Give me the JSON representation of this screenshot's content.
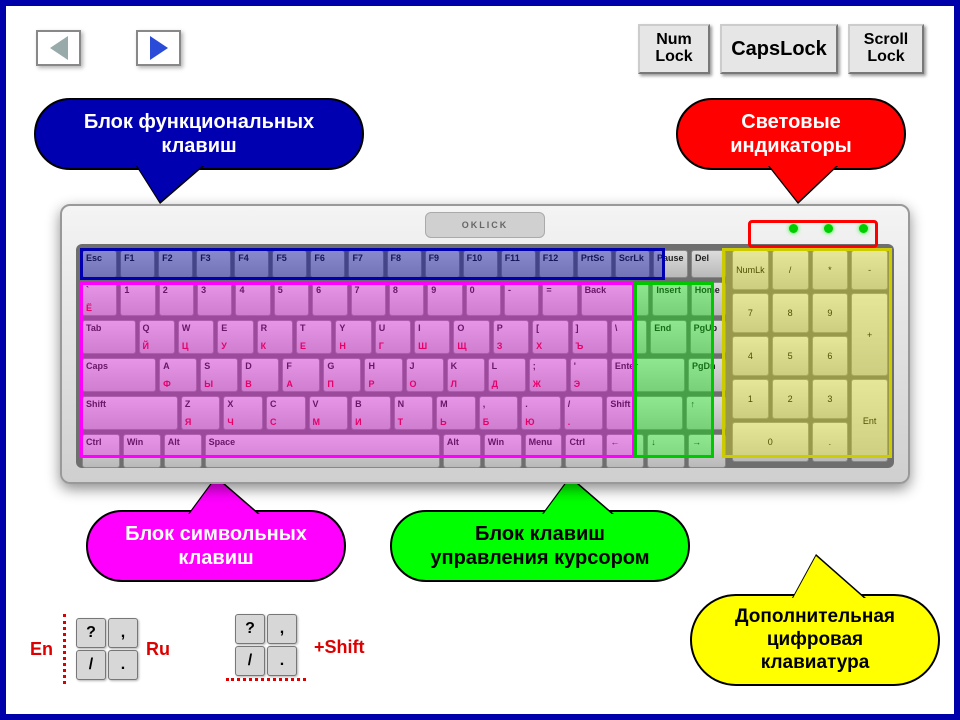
{
  "nav": {
    "back_icon": "triangle-left",
    "forward_icon": "triangle-right"
  },
  "locks": {
    "num": "Num\nLock",
    "caps": "CapsLock",
    "scroll": "Scroll\nLock"
  },
  "callouts": {
    "functional": {
      "text": "Блок функциональных клавиш",
      "bg": "#0000b0",
      "fg": "#ffffff"
    },
    "indicators": {
      "text": "Световые индикаторы",
      "bg": "#ff0000",
      "fg": "#ffffff"
    },
    "char": {
      "text": "Блок символьных клавиш",
      "bg": "#ff00ff",
      "fg": "#ffffff"
    },
    "cursor": {
      "text": "Блок клавиш управления курсором",
      "bg": "#00ff00",
      "fg": "#000000"
    },
    "numpad": {
      "text": "Дополнительная цифровая клавиатура",
      "bg": "#ffff00",
      "fg": "#000000"
    }
  },
  "keyboard": {
    "brand": "OKLICK",
    "row_func": [
      "Esc",
      "F1",
      "F2",
      "F3",
      "F4",
      "F5",
      "F6",
      "F7",
      "F8",
      "F9",
      "F10",
      "F11",
      "F12",
      "PrtSc",
      "ScrLk",
      "Pause",
      "Del"
    ],
    "row1_en": [
      "`",
      "1",
      "2",
      "3",
      "4",
      "5",
      "6",
      "7",
      "8",
      "9",
      "0",
      "-",
      "=",
      "Back",
      "Insert",
      "Home"
    ],
    "row1_ru": [
      "Ё",
      "",
      "",
      "",
      "",
      "",
      "",
      "",
      "",
      "",
      "",
      "",
      "",
      "",
      "",
      ""
    ],
    "row2_en": [
      "Tab",
      "Q",
      "W",
      "E",
      "R",
      "T",
      "Y",
      "U",
      "I",
      "O",
      "P",
      "[",
      "]",
      "\\",
      "End",
      "PgUp"
    ],
    "row2_ru": [
      "",
      "Й",
      "Ц",
      "У",
      "К",
      "Е",
      "Н",
      "Г",
      "Ш",
      "Щ",
      "З",
      "Х",
      "Ъ",
      "",
      "",
      ""
    ],
    "row3_en": [
      "Caps",
      "A",
      "S",
      "D",
      "F",
      "G",
      "H",
      "J",
      "K",
      "L",
      ";",
      "'",
      "Enter",
      "",
      "PgDn"
    ],
    "row3_ru": [
      "",
      "Ф",
      "Ы",
      "В",
      "А",
      "П",
      "Р",
      "О",
      "Л",
      "Д",
      "Ж",
      "Э",
      "",
      "",
      ""
    ],
    "row4_en": [
      "Shift",
      "Z",
      "X",
      "C",
      "V",
      "B",
      "N",
      "M",
      ",",
      ".",
      "/",
      "Shift",
      "",
      "↑",
      ""
    ],
    "row4_ru": [
      "",
      "Я",
      "Ч",
      "С",
      "М",
      "И",
      "Т",
      "Ь",
      "Б",
      "Ю",
      ".",
      "",
      "",
      "",
      ""
    ],
    "row5": [
      "Ctrl",
      "Win",
      "Alt",
      "Space",
      "Alt",
      "Win",
      "Menu",
      "Ctrl",
      "←",
      "↓",
      "→"
    ],
    "numpad": [
      "NumLk",
      "/",
      "*",
      "-",
      "7",
      "8",
      "9",
      "+",
      "4",
      "5",
      "6",
      "1",
      "2",
      "3",
      "Ent",
      "0",
      "."
    ]
  },
  "overlays": {
    "functional": {
      "color": "#0000b0",
      "alpha": 0.38
    },
    "char": {
      "color": "#ff00ff",
      "alpha": 0.32
    },
    "cursor": {
      "color": "#00ff00",
      "alpha": 0.35
    },
    "numpad": {
      "color": "#ffff00",
      "alpha": 0.3
    },
    "leds": {
      "color": "#ff0000"
    }
  },
  "legend": {
    "en": "En",
    "ru": "Ru",
    "shift": "+Shift",
    "keys_left": {
      "tl": "?",
      "tr": ",",
      "bl": "/",
      "br": "."
    },
    "keys_right": {
      "tl": "?",
      "tr": ",",
      "bl": "/",
      "br": "."
    }
  },
  "frame_color": "#0000aa"
}
